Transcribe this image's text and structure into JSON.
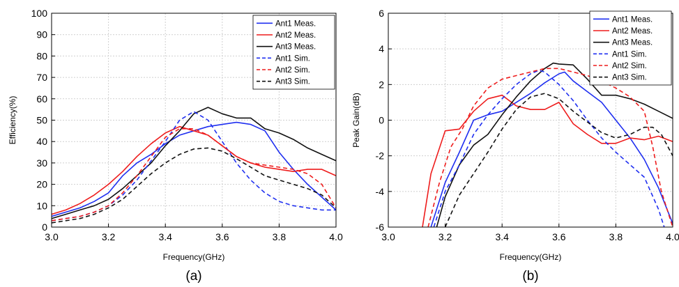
{
  "chart_data": [
    {
      "type": "line",
      "panel_label": "(a)",
      "xlabel": "Frequency(GHz)",
      "ylabel": "Efficiency(%)",
      "xlim": [
        3.0,
        4.0
      ],
      "ylim": [
        0,
        100
      ],
      "xticks": [
        3.0,
        3.2,
        3.4,
        3.6,
        3.8,
        4.0
      ],
      "xtick_labels": [
        "3.0",
        "3.2",
        "3.4",
        "3.6",
        "3.8",
        "4.0"
      ],
      "yticks": [
        0,
        10,
        20,
        30,
        40,
        50,
        60,
        70,
        80,
        90,
        100
      ],
      "ytick_labels": [
        "0",
        "10",
        "20",
        "30",
        "40",
        "50",
        "60",
        "70",
        "80",
        "90",
        "100"
      ],
      "grid": true,
      "legend_position": "top-right",
      "series": [
        {
          "name": "Ant1 Meas.",
          "color": "#1f2ff0",
          "dash": "solid",
          "x": [
            3.0,
            3.05,
            3.1,
            3.15,
            3.2,
            3.25,
            3.3,
            3.35,
            3.4,
            3.45,
            3.5,
            3.55,
            3.6,
            3.65,
            3.7,
            3.75,
            3.8,
            3.85,
            3.9,
            3.95,
            4.0
          ],
          "y": [
            5,
            7,
            9,
            12,
            16,
            24,
            30,
            34,
            39,
            43,
            45,
            47,
            48,
            49,
            48,
            45,
            35,
            27,
            20,
            14,
            8
          ]
        },
        {
          "name": "Ant2 Meas.",
          "color": "#ee1c1c",
          "dash": "solid",
          "x": [
            3.0,
            3.05,
            3.1,
            3.15,
            3.2,
            3.25,
            3.3,
            3.35,
            3.4,
            3.45,
            3.5,
            3.55,
            3.6,
            3.65,
            3.7,
            3.75,
            3.8,
            3.85,
            3.9,
            3.95,
            4.0
          ],
          "y": [
            6,
            8,
            11,
            15,
            20,
            26,
            33,
            39,
            44,
            47,
            45,
            43,
            38,
            33,
            30,
            28,
            27,
            26,
            27,
            27,
            24
          ]
        },
        {
          "name": "Ant3 Meas.",
          "color": "#111111",
          "dash": "solid",
          "x": [
            3.0,
            3.05,
            3.1,
            3.15,
            3.2,
            3.25,
            3.3,
            3.35,
            3.4,
            3.45,
            3.5,
            3.55,
            3.6,
            3.65,
            3.7,
            3.75,
            3.8,
            3.85,
            3.9,
            3.95,
            4.0
          ],
          "y": [
            4,
            6,
            8,
            10,
            13,
            18,
            24,
            30,
            38,
            45,
            53,
            56,
            53,
            51,
            51,
            46,
            44,
            41,
            37,
            34,
            31
          ]
        },
        {
          "name": "Ant1 Sim.",
          "color": "#1f2ff0",
          "dash": "dash",
          "x": [
            3.0,
            3.05,
            3.1,
            3.15,
            3.2,
            3.25,
            3.3,
            3.35,
            3.4,
            3.45,
            3.5,
            3.55,
            3.6,
            3.65,
            3.7,
            3.75,
            3.8,
            3.85,
            3.9,
            3.95,
            4.0
          ],
          "y": [
            3,
            4,
            5,
            7,
            10,
            15,
            22,
            31,
            40,
            50,
            54,
            50,
            40,
            30,
            22,
            16,
            12,
            10,
            9,
            8,
            8
          ]
        },
        {
          "name": "Ant2 Sim.",
          "color": "#ee1c1c",
          "dash": "dash",
          "x": [
            3.0,
            3.05,
            3.1,
            3.15,
            3.2,
            3.25,
            3.3,
            3.35,
            3.4,
            3.45,
            3.5,
            3.55,
            3.6,
            3.65,
            3.7,
            3.75,
            3.8,
            3.85,
            3.9,
            3.95,
            4.0
          ],
          "y": [
            3,
            4,
            5,
            7,
            10,
            16,
            24,
            33,
            42,
            46,
            46,
            43,
            38,
            33,
            30,
            29,
            28,
            27,
            25,
            20,
            9
          ]
        },
        {
          "name": "Ant3 Sim.",
          "color": "#111111",
          "dash": "dash",
          "x": [
            3.0,
            3.05,
            3.1,
            3.15,
            3.2,
            3.25,
            3.3,
            3.35,
            3.4,
            3.45,
            3.5,
            3.55,
            3.6,
            3.65,
            3.7,
            3.75,
            3.8,
            3.85,
            3.9,
            3.95,
            4.0
          ],
          "y": [
            2,
            3,
            4,
            6,
            9,
            13,
            19,
            25,
            30,
            34,
            36.5,
            37,
            35.5,
            32,
            28,
            24,
            22,
            20,
            18,
            15,
            9
          ]
        }
      ]
    },
    {
      "type": "line",
      "panel_label": "(b)",
      "xlabel": "Frequency(GHz)",
      "ylabel": "Peak Gain(dB)",
      "xlim": [
        3.0,
        4.0
      ],
      "ylim": [
        -6,
        6
      ],
      "xticks": [
        3.0,
        3.2,
        3.4,
        3.6,
        3.8,
        4.0
      ],
      "xtick_labels": [
        "3.0",
        "3.2",
        "3.4",
        "3.6",
        "3.8",
        "4.0"
      ],
      "yticks": [
        -6,
        -4,
        -2,
        0,
        2,
        4,
        6
      ],
      "ytick_labels": [
        "-6",
        "-4",
        "-2",
        "0",
        "2",
        "4",
        "6"
      ],
      "grid": true,
      "legend_position": "top-right",
      "series": [
        {
          "name": "Ant1 Meas.",
          "color": "#1f2ff0",
          "dash": "solid",
          "x": [
            3.15,
            3.2,
            3.25,
            3.3,
            3.35,
            3.4,
            3.45,
            3.5,
            3.55,
            3.6,
            3.62,
            3.65,
            3.7,
            3.75,
            3.8,
            3.85,
            3.9,
            3.95,
            4.0
          ],
          "y": [
            -6,
            -3.5,
            -1.8,
            0,
            0.3,
            0.5,
            1.0,
            1.5,
            2.1,
            2.6,
            2.7,
            2.2,
            1.6,
            1.0,
            0.0,
            -1.0,
            -2.2,
            -3.8,
            -5.8
          ]
        },
        {
          "name": "Ant2 Meas.",
          "color": "#ee1c1c",
          "dash": "solid",
          "x": [
            3.12,
            3.15,
            3.2,
            3.25,
            3.3,
            3.35,
            3.4,
            3.45,
            3.5,
            3.55,
            3.6,
            3.65,
            3.7,
            3.75,
            3.8,
            3.85,
            3.9,
            3.95,
            4.0
          ],
          "y": [
            -6,
            -3.0,
            -0.6,
            -0.5,
            0.5,
            1.2,
            1.4,
            0.8,
            0.6,
            0.6,
            1.0,
            -0.2,
            -0.8,
            -1.3,
            -1.3,
            -1.0,
            -1.1,
            -0.9,
            -1.2
          ]
        },
        {
          "name": "Ant3 Meas.",
          "color": "#111111",
          "dash": "solid",
          "x": [
            3.17,
            3.2,
            3.25,
            3.3,
            3.35,
            3.4,
            3.45,
            3.5,
            3.55,
            3.58,
            3.6,
            3.65,
            3.7,
            3.75,
            3.8,
            3.85,
            3.9,
            3.95,
            4.0
          ],
          "y": [
            -6,
            -4.3,
            -2.5,
            -1.4,
            -0.8,
            0.3,
            1.3,
            2.2,
            2.9,
            3.2,
            3.15,
            3.1,
            2.3,
            1.4,
            1.4,
            1.2,
            0.9,
            0.5,
            0.1
          ]
        },
        {
          "name": "Ant1 Sim.",
          "color": "#1f2ff0",
          "dash": "dash",
          "x": [
            3.16,
            3.2,
            3.25,
            3.3,
            3.35,
            3.4,
            3.45,
            3.5,
            3.53,
            3.55,
            3.6,
            3.65,
            3.7,
            3.75,
            3.8,
            3.85,
            3.9,
            3.95,
            3.97
          ],
          "y": [
            -6,
            -4.0,
            -2.5,
            -0.8,
            0.3,
            1.2,
            2.0,
            2.6,
            2.8,
            2.7,
            2.0,
            1.1,
            0.0,
            -1.0,
            -1.8,
            -2.5,
            -3.2,
            -5.0,
            -6.0
          ]
        },
        {
          "name": "Ant2 Sim.",
          "color": "#ee1c1c",
          "dash": "dash",
          "x": [
            3.14,
            3.18,
            3.22,
            3.26,
            3.3,
            3.35,
            3.4,
            3.45,
            3.5,
            3.55,
            3.6,
            3.65,
            3.7,
            3.75,
            3.8,
            3.85,
            3.9,
            3.93,
            3.96,
            4.0
          ],
          "y": [
            -6,
            -3.5,
            -1.5,
            -0.5,
            0.8,
            1.8,
            2.3,
            2.5,
            2.7,
            2.9,
            2.9,
            2.7,
            2.5,
            2.2,
            1.8,
            1.3,
            0.5,
            -1.5,
            -4.0,
            -6.0
          ]
        },
        {
          "name": "Ant3 Sim.",
          "color": "#111111",
          "dash": "dash",
          "x": [
            3.2,
            3.25,
            3.3,
            3.35,
            3.4,
            3.45,
            3.5,
            3.55,
            3.6,
            3.65,
            3.7,
            3.75,
            3.8,
            3.85,
            3.9,
            3.93,
            3.96,
            4.0
          ],
          "y": [
            -6,
            -4.2,
            -3.0,
            -1.8,
            -0.5,
            0.6,
            1.3,
            1.5,
            1.2,
            0.5,
            -0.1,
            -0.7,
            -1.0,
            -0.8,
            -0.4,
            -0.4,
            -0.8,
            -2.0
          ]
        }
      ]
    }
  ]
}
